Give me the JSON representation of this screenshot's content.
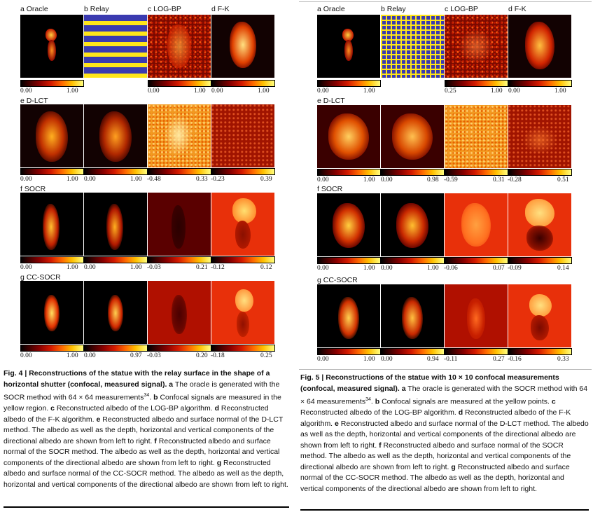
{
  "fig4": {
    "labels": {
      "a": "a Oracle",
      "b": "b Relay",
      "c": "c LOG-BP",
      "d": "d F-K",
      "e": "e D-LCT",
      "f": "f SOCR",
      "g": "g CC-SOCR"
    },
    "cbar_row1": [
      "0.00",
      "1.00",
      "0.00",
      "1.00",
      "0.00",
      "1.00"
    ],
    "cbar_row2": [
      "0.00",
      "1.00",
      "0.00",
      "1.00",
      "-0.48",
      "0.33",
      "-0.23",
      "0.39"
    ],
    "cbar_row3": [
      "0.00",
      "1.00",
      "0.00",
      "1.00",
      "-0.03",
      "0.21",
      "-0.12",
      "0.12"
    ],
    "cbar_row4": [
      "0.00",
      "1.00",
      "0.00",
      "0.97",
      "-0.03",
      "0.20",
      "-0.18",
      "0.25"
    ],
    "caption": {
      "title": "Fig. 4 | Reconstructions of the statue with the relay surface in the shape of a horizontal shutter (confocal, measured signal).",
      "a_text": "The oracle is generated with the SOCR method with 64 × 64 measurements",
      "a_ref": "34",
      "b_text": "Confocal signals are measured in the yellow region.",
      "c_text": "Reconstructed albedo of the LOG-BP algorithm.",
      "d_text": "Reconstructed albedo of the F-K algorithm.",
      "e_text": "Reconstructed albedo and surface normal of the D-LCT method. The albedo as well as the depth, horizontal and vertical components of the directional albedo are shown from left to right.",
      "f_text": "Reconstructed albedo and surface normal of the SOCR method. The albedo as well as the depth, horizontal and vertical components of the directional albedo are shown from left to right.",
      "g_text": "Reconstructed albedo and surface normal of the CC-SOCR method. The albedo as well as the depth, horizontal and vertical components of the directional albedo are shown from left to right."
    }
  },
  "fig5": {
    "labels": {
      "a": "a Oracle",
      "b": "b Relay",
      "c": "c LOG-BP",
      "d": "d F-K",
      "e": "e D-LCT",
      "f": "f SOCR",
      "g": "g CC-SOCR"
    },
    "cbar_row1": [
      "0.00",
      "1.00",
      "0.25",
      "1.00",
      "0.00",
      "1.00"
    ],
    "cbar_row2": [
      "0.00",
      "1.00",
      "0.00",
      "0.98",
      "-0.59",
      "0.31",
      "-0.28",
      "0.51"
    ],
    "cbar_row3": [
      "0.00",
      "1.00",
      "0.00",
      "1.00",
      "-0.06",
      "0.07",
      "-0.09",
      "0.14"
    ],
    "cbar_row4": [
      "0.00",
      "1.00",
      "0.00",
      "0.94",
      "-0.11",
      "0.27",
      "-0.16",
      "0.33"
    ],
    "caption": {
      "title": "Fig. 5 | Reconstructions of the statue with 10 × 10 confocal measurements (confocal, measured signal).",
      "a_text": "The oracle is generated with the SOCR method with 64 × 64 measurements",
      "a_ref": "34",
      "b_text": "Confocal signals are measured at the yellow points.",
      "c_text": "Reconstructed albedo of the LOG-BP algorithm.",
      "d_text": "Reconstructed albedo of the F-K algorithm.",
      "e_text": "Reconstructed albedo and surface normal of the D-LCT method. The albedo as well as the depth, horizontal and vertical components of the directional albedo are shown from left to right.",
      "f_text": "Reconstructed albedo and surface normal of the SOCR method. The albedo as well as the depth, horizontal and vertical components of the directional albedo are shown from left to right.",
      "g_text": "Reconstructed albedo and surface normal of the CC-SOCR method. The albedo as well as the depth, horizontal and vertical components of the directional albedo are shown from left to right."
    }
  }
}
